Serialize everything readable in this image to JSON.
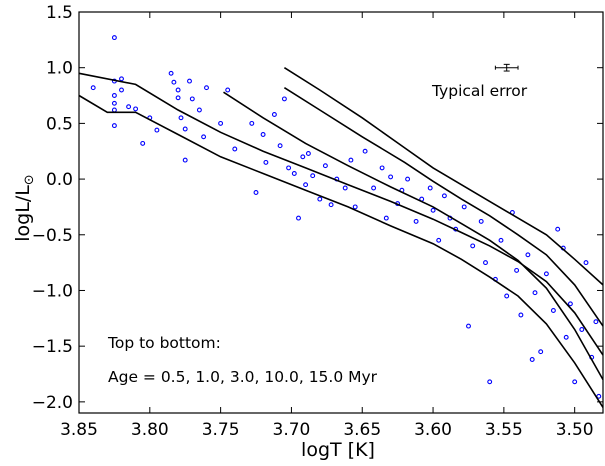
{
  "chart_data": {
    "type": "scatter",
    "xlabel": "logT [K]",
    "ylabel_main": "logL/L",
    "ylabel_symbol": "⊙",
    "xlim": [
      3.85,
      3.48
    ],
    "ylim": [
      -2.1,
      1.5
    ],
    "x_ticks": [
      3.85,
      3.8,
      3.75,
      3.7,
      3.65,
      3.6,
      3.55,
      3.5
    ],
    "x_tick_labels": [
      "3.85",
      "3.80",
      "3.75",
      "3.70",
      "3.65",
      "3.60",
      "3.55",
      "3.50"
    ],
    "y_ticks": [
      1.5,
      1.0,
      0.5,
      0.0,
      -0.5,
      -1.0,
      -1.5,
      -2.0
    ],
    "y_tick_labels": [
      "1.5",
      "1.0",
      "0.5",
      "0.0",
      "−0.5",
      "−1.0",
      "−1.5",
      "−2.0"
    ],
    "grid": false,
    "marker_color": "#0000ff",
    "line_color": "#000000",
    "annotations": {
      "error_label": "Typical error",
      "error_bar": {
        "x": 3.548,
        "y": 1.0,
        "xerr": 0.008,
        "yerr": 0.03
      },
      "legend_line1": "Top to bottom:",
      "legend_line2": "Age = 0.5, 1.0, 3.0, 10.0, 15.0 Myr"
    },
    "isochrones": [
      {
        "age_myr": 0.5,
        "x": [
          3.705,
          3.68,
          3.65,
          3.62,
          3.6,
          3.58,
          3.56,
          3.54,
          3.52,
          3.5,
          3.48
        ],
        "y": [
          1.0,
          0.8,
          0.55,
          0.28,
          0.1,
          -0.05,
          -0.2,
          -0.35,
          -0.5,
          -0.72,
          -0.95
        ]
      },
      {
        "age_myr": 1.0,
        "x": [
          3.705,
          3.68,
          3.65,
          3.62,
          3.6,
          3.58,
          3.56,
          3.54,
          3.52,
          3.5,
          3.48
        ],
        "y": [
          0.82,
          0.62,
          0.38,
          0.15,
          -0.02,
          -0.18,
          -0.33,
          -0.5,
          -0.68,
          -0.95,
          -1.32
        ]
      },
      {
        "age_myr": 3.0,
        "x": [
          3.85,
          3.81,
          3.78,
          3.75,
          3.72,
          3.69,
          3.66,
          3.63,
          3.6,
          3.58,
          3.56,
          3.54,
          3.52,
          3.5,
          3.48
        ],
        "y": [
          0.95,
          0.85,
          0.62,
          0.42,
          0.25,
          0.1,
          -0.05,
          -0.2,
          -0.36,
          -0.48,
          -0.6,
          -0.74,
          -0.92,
          -1.2,
          -1.58
        ]
      },
      {
        "age_myr": 10.0,
        "x": [
          3.748,
          3.72,
          3.69,
          3.66,
          3.63,
          3.6,
          3.58,
          3.56,
          3.54,
          3.52,
          3.5,
          3.48
        ],
        "y": [
          0.78,
          0.55,
          0.32,
          0.12,
          -0.07,
          -0.25,
          -0.4,
          -0.55,
          -0.73,
          -0.98,
          -1.35,
          -1.8
        ]
      },
      {
        "age_myr": 15.0,
        "x": [
          3.85,
          3.83,
          3.81,
          3.78,
          3.75,
          3.72,
          3.69,
          3.66,
          3.63,
          3.6,
          3.58,
          3.56,
          3.54,
          3.52,
          3.5,
          3.48
        ],
        "y": [
          0.75,
          0.6,
          0.6,
          0.4,
          0.2,
          0.05,
          -0.1,
          -0.25,
          -0.42,
          -0.58,
          -0.72,
          -0.88,
          -1.05,
          -1.3,
          -1.65,
          -2.05
        ]
      }
    ],
    "points": [
      [
        3.84,
        0.82
      ],
      [
        3.825,
        1.27
      ],
      [
        3.825,
        0.88
      ],
      [
        3.825,
        0.75
      ],
      [
        3.825,
        0.68
      ],
      [
        3.825,
        0.62
      ],
      [
        3.825,
        0.48
      ],
      [
        3.82,
        0.9
      ],
      [
        3.82,
        0.8
      ],
      [
        3.815,
        0.65
      ],
      [
        3.81,
        0.63
      ],
      [
        3.805,
        0.32
      ],
      [
        3.8,
        0.55
      ],
      [
        3.795,
        0.44
      ],
      [
        3.785,
        0.95
      ],
      [
        3.783,
        0.87
      ],
      [
        3.78,
        0.8
      ],
      [
        3.78,
        0.73
      ],
      [
        3.778,
        0.55
      ],
      [
        3.775,
        0.17
      ],
      [
        3.775,
        0.45
      ],
      [
        3.772,
        0.88
      ],
      [
        3.77,
        0.72
      ],
      [
        3.765,
        0.62
      ],
      [
        3.762,
        0.38
      ],
      [
        3.76,
        0.82
      ],
      [
        3.75,
        0.5
      ],
      [
        3.745,
        0.8
      ],
      [
        3.74,
        0.27
      ],
      [
        3.728,
        0.5
      ],
      [
        3.725,
        -0.12
      ],
      [
        3.72,
        0.4
      ],
      [
        3.718,
        0.15
      ],
      [
        3.712,
        0.58
      ],
      [
        3.708,
        0.3
      ],
      [
        3.705,
        0.72
      ],
      [
        3.702,
        0.1
      ],
      [
        3.698,
        0.05
      ],
      [
        3.695,
        -0.35
      ],
      [
        3.692,
        0.2
      ],
      [
        3.69,
        -0.05
      ],
      [
        3.688,
        0.23
      ],
      [
        3.685,
        0.03
      ],
      [
        3.68,
        -0.18
      ],
      [
        3.676,
        0.12
      ],
      [
        3.672,
        -0.23
      ],
      [
        3.668,
        0.0
      ],
      [
        3.662,
        -0.08
      ],
      [
        3.658,
        0.17
      ],
      [
        3.655,
        -0.25
      ],
      [
        3.648,
        0.25
      ],
      [
        3.642,
        -0.08
      ],
      [
        3.636,
        0.1
      ],
      [
        3.633,
        -0.35
      ],
      [
        3.63,
        0.02
      ],
      [
        3.625,
        -0.22
      ],
      [
        3.622,
        -0.1
      ],
      [
        3.618,
        0.0
      ],
      [
        3.612,
        -0.38
      ],
      [
        3.608,
        -0.18
      ],
      [
        3.602,
        -0.08
      ],
      [
        3.6,
        -0.28
      ],
      [
        3.596,
        -0.55
      ],
      [
        3.592,
        -0.15
      ],
      [
        3.588,
        -0.35
      ],
      [
        3.584,
        -0.45
      ],
      [
        3.578,
        -0.25
      ],
      [
        3.575,
        -1.32
      ],
      [
        3.572,
        -0.6
      ],
      [
        3.566,
        -0.38
      ],
      [
        3.563,
        -0.75
      ],
      [
        3.56,
        -1.82
      ],
      [
        3.556,
        -0.9
      ],
      [
        3.552,
        -0.55
      ],
      [
        3.548,
        -1.05
      ],
      [
        3.544,
        -0.3
      ],
      [
        3.541,
        -0.82
      ],
      [
        3.538,
        -1.22
      ],
      [
        3.533,
        -0.68
      ],
      [
        3.53,
        -1.62
      ],
      [
        3.528,
        -1.02
      ],
      [
        3.524,
        -1.55
      ],
      [
        3.52,
        -0.85
      ],
      [
        3.515,
        -1.18
      ],
      [
        3.512,
        -0.45
      ],
      [
        3.508,
        -0.62
      ],
      [
        3.506,
        -1.42
      ],
      [
        3.503,
        -1.12
      ],
      [
        3.5,
        -1.82
      ],
      [
        3.495,
        -1.35
      ],
      [
        3.492,
        -0.75
      ],
      [
        3.488,
        -1.6
      ],
      [
        3.485,
        -1.28
      ],
      [
        3.483,
        -1.95
      ]
    ]
  }
}
